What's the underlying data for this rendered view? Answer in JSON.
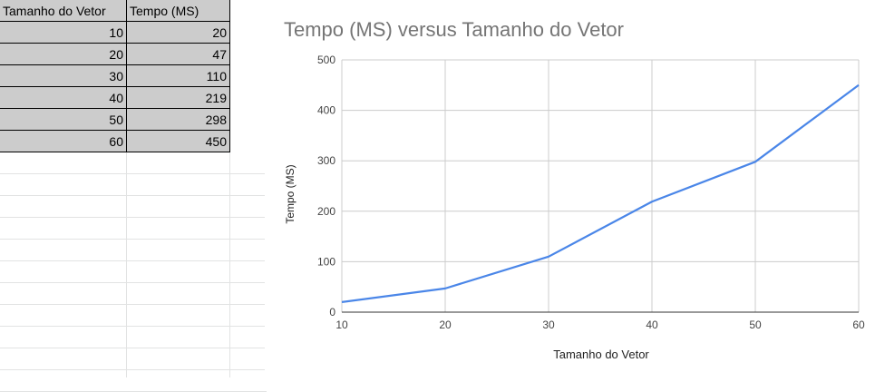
{
  "sheet": {
    "headers": [
      "Tamanho do Vetor",
      "Tempo (MS)"
    ],
    "rows": [
      [
        "10",
        "20"
      ],
      [
        "20",
        "47"
      ],
      [
        "30",
        "110"
      ],
      [
        "40",
        "219"
      ],
      [
        "50",
        "298"
      ],
      [
        "60",
        "450"
      ]
    ],
    "header_fill": "#cccccc"
  },
  "chart_data": {
    "type": "line",
    "title": "Tempo (MS) versus Tamanho do Vetor",
    "xlabel": "Tamanho do Vetor",
    "ylabel": "Tempo (MS)",
    "x": [
      10,
      20,
      30,
      40,
      50,
      60
    ],
    "series": [
      {
        "values": [
          20,
          47,
          110,
          219,
          298,
          450
        ],
        "color": "#4a86e8"
      }
    ],
    "xlim": [
      10,
      60
    ],
    "ylim": [
      0,
      500
    ],
    "xticks": [
      "10",
      "20",
      "30",
      "40",
      "50",
      "60"
    ],
    "yticks": [
      "0",
      "100",
      "200",
      "300",
      "400",
      "500"
    ],
    "grid": true,
    "legend": "none"
  }
}
